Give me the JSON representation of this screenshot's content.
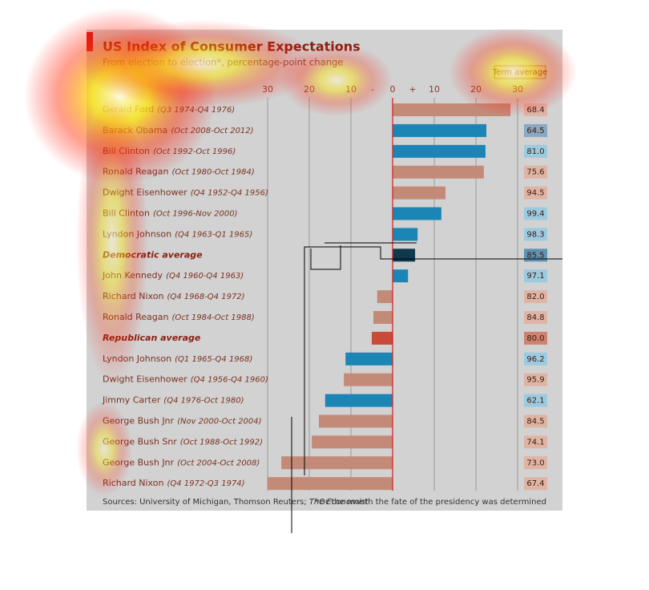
{
  "chart_data": {
    "type": "bar",
    "orientation": "horizontal",
    "title": "US Index of Consumer Expectations",
    "subtitle": "From election to election*, percentage-point change",
    "term_average_label": "Term average",
    "minus_label": "-",
    "plus_label": "+",
    "categories": [
      "Gerald Ford",
      "Barack Obama",
      "Bill Clinton",
      "Ronald Reagan",
      "Dwight Eisenhower",
      "Bill Clinton",
      "Lyndon Johnson",
      "Democratic average",
      "John Kennedy",
      "Richard Nixon",
      "Ronald Reagan",
      "Republican average",
      "Lyndon Johnson",
      "Dwight Eisenhower",
      "Jimmy Carter",
      "George Bush Jnr",
      "George Bush Snr",
      "George Bush Jnr",
      "Richard Nixon"
    ],
    "periods": [
      "(Q3 1974-Q4 1976)",
      "(Oct 2008-Oct 2012)",
      "(Oct 1992-Oct 1996)",
      "(Oct 1980-Oct 1984)",
      "(Q4 1952-Q4 1956)",
      "(Oct 1996-Nov 2000)",
      "(Q4 1963-Q1 1965)",
      null,
      "(Q4 1960-Q4 1963)",
      "(Q4 1968-Q4 1972)",
      "(Oct 1984-Oct 1988)",
      null,
      "(Q1 1965-Q4 1968)",
      "(Q4 1956-Q4 1960)",
      "(Q4 1976-Oct 1980)",
      "(Nov 2000-Oct 2004)",
      "(Oct 1988-Oct 1992)",
      "(Oct 2004-Oct 2008)",
      "(Q4 1972-Q3 1974)"
    ],
    "values": [
      28.3,
      22.5,
      22.3,
      21.9,
      12.7,
      11.7,
      6,
      5.4,
      3.7,
      -3.7,
      -4.6,
      -5,
      -11.3,
      -11.7,
      -16.2,
      -17.7,
      -19.4,
      -26.7,
      -30
    ],
    "colors": [
      "#c48a78",
      "#1b86b6",
      "#1b86b6",
      "#c48a78",
      "#c48a78",
      "#1b86b6",
      "#1b86b6",
      "#0f3a4e",
      "#1b86b6",
      "#c48a78",
      "#c48a78",
      "#c84a38",
      "#1b86b6",
      "#c48a78",
      "#1b86b6",
      "#c48a78",
      "#c48a78",
      "#c48a78",
      "#c48a78"
    ],
    "box_colors": [
      "#dfb4a4",
      "#8aa8c0",
      "#9ccbe0",
      "#dfb4a4",
      "#dfb4a4",
      "#9ccbe0",
      "#9ccbe0",
      "#5e93b3",
      "#9ccbe0",
      "#dfb4a4",
      "#dfb4a4",
      "#cf8270",
      "#9ccbe0",
      "#dfb4a4",
      "#9ccbe0",
      "#dfb4a4",
      "#dfb4a4",
      "#dfb4a4",
      "#dfb4a4"
    ],
    "term_averages": [
      68.4,
      64.5,
      81,
      75.6,
      94.5,
      99.4,
      98.3,
      85.5,
      97.1,
      82,
      84.8,
      80,
      96.2,
      95.9,
      62.1,
      84.5,
      74.1,
      73,
      67.4
    ],
    "term_average_labels": [
      "68.4",
      "64.5",
      "81.0",
      "75.6",
      "94.5",
      "99.4",
      "98.3",
      "85.5",
      "97.1",
      "82.0",
      "84.8",
      "80.0",
      "96.2",
      "95.9",
      "62.1",
      "84.5",
      "74.1",
      "73.0",
      "67.4"
    ],
    "xlim": [
      -30,
      30
    ],
    "xticks": [
      {
        "value": -30,
        "label": "30"
      },
      {
        "value": -20,
        "label": "20"
      },
      {
        "value": -10,
        "label": "10"
      },
      0,
      10,
      20,
      30
    ],
    "grid": true,
    "source": "Sources: University of Michigan, Thomson Reuters; ",
    "source_italic": "The Economist",
    "footnote": "*Or the month the fate of the presidency was determined"
  }
}
